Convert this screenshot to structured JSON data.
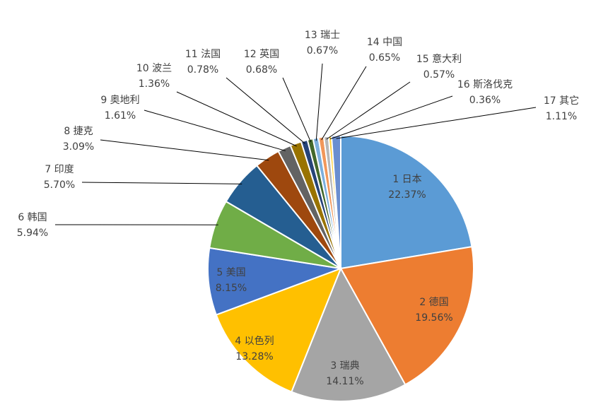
{
  "chart_data": {
    "type": "pie",
    "title": "",
    "start_angle_deg": 0,
    "direction": "clockwise",
    "slices": [
      {
        "label": "1 日本",
        "value": 22.37,
        "value_label": "22.37%",
        "color": "#5B9BD5"
      },
      {
        "label": "2 德国",
        "value": 19.56,
        "value_label": "19.56%",
        "color": "#ED7D31"
      },
      {
        "label": "3 瑞典",
        "value": 14.11,
        "value_label": "14.11%",
        "color": "#A5A5A5"
      },
      {
        "label": "4 以色列",
        "value": 13.28,
        "value_label": "13.28%",
        "color": "#FFC000"
      },
      {
        "label": "5 美国",
        "value": 8.15,
        "value_label": "8.15%",
        "color": "#4472C4"
      },
      {
        "label": "6 韩国",
        "value": 5.94,
        "value_label": "5.94%",
        "color": "#70AD47"
      },
      {
        "label": "7 印度",
        "value": 5.7,
        "value_label": "5.70%",
        "color": "#255E91"
      },
      {
        "label": "8 捷克",
        "value": 3.09,
        "value_label": "3.09%",
        "color": "#9E480E"
      },
      {
        "label": "9 奥地利",
        "value": 1.61,
        "value_label": "1.61%",
        "color": "#636363"
      },
      {
        "label": "10 波兰",
        "value": 1.36,
        "value_label": "1.36%",
        "color": "#997300"
      },
      {
        "label": "11 法国",
        "value": 0.78,
        "value_label": "0.78%",
        "color": "#264478"
      },
      {
        "label": "12 英国",
        "value": 0.68,
        "value_label": "0.68%",
        "color": "#43682B"
      },
      {
        "label": "13 瑞士",
        "value": 0.67,
        "value_label": "0.67%",
        "color": "#7CAFDD"
      },
      {
        "label": "14 中国",
        "value": 0.65,
        "value_label": "0.65%",
        "color": "#F1975A"
      },
      {
        "label": "15 意大利",
        "value": 0.57,
        "value_label": "0.57%",
        "color": "#B7B7B7"
      },
      {
        "label": "16 斯洛伐克",
        "value": 0.36,
        "value_label": "0.36%",
        "color": "#FFCD33"
      },
      {
        "label": "17 其它",
        "value": 1.11,
        "value_label": "1.11%",
        "color": "#698ED0"
      }
    ]
  }
}
